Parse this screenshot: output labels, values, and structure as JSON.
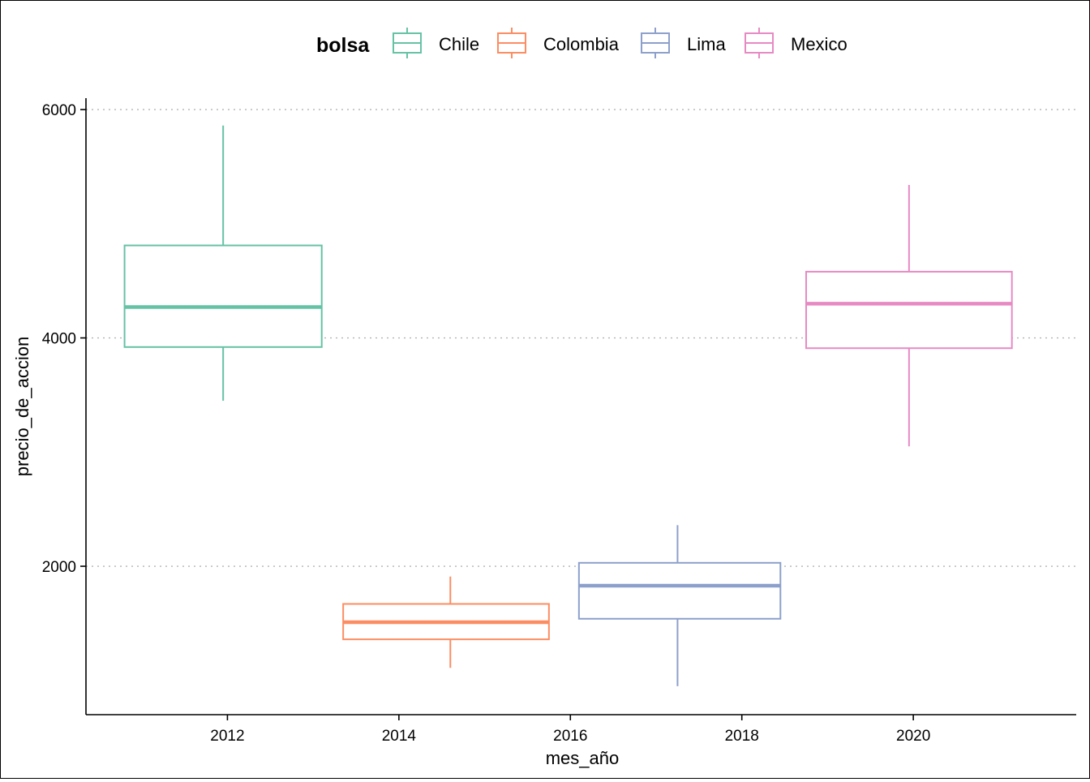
{
  "chart_data": {
    "type": "boxplot",
    "xlabel": "mes_año",
    "ylabel": "precio_de_accion",
    "x_ticks": [
      2012,
      2014,
      2016,
      2018,
      2020
    ],
    "y_ticks": [
      2000,
      4000,
      6000
    ],
    "xlim": [
      2010.35,
      2021.9
    ],
    "ylim": [
      700,
      6100
    ],
    "grid": "horizontal-dotted",
    "legend": {
      "title": "bolsa",
      "position": "top",
      "items": [
        "Chile",
        "Colombia",
        "Lima",
        "Mexico"
      ]
    },
    "series": [
      {
        "name": "Chile",
        "color": "#66c2a5",
        "x_from": 2010.8,
        "x_to": 2013.1,
        "x_center": 2011.95,
        "min": 3450,
        "q1": 3920,
        "median": 4270,
        "q3": 4810,
        "max": 5860
      },
      {
        "name": "Colombia",
        "color": "#fc8d62",
        "x_from": 2013.35,
        "x_to": 2015.75,
        "x_center": 2014.6,
        "min": 1110,
        "q1": 1360,
        "median": 1510,
        "q3": 1670,
        "max": 1910
      },
      {
        "name": "Lima",
        "color": "#8da0cb",
        "x_from": 2016.1,
        "x_to": 2018.45,
        "x_center": 2017.25,
        "min": 950,
        "q1": 1540,
        "median": 1830,
        "q3": 2030,
        "max": 2360
      },
      {
        "name": "Mexico",
        "color": "#e78ac3",
        "x_from": 2018.75,
        "x_to": 2021.15,
        "x_center": 2019.95,
        "min": 3050,
        "q1": 3910,
        "median": 4300,
        "q3": 4580,
        "max": 5340
      }
    ]
  }
}
